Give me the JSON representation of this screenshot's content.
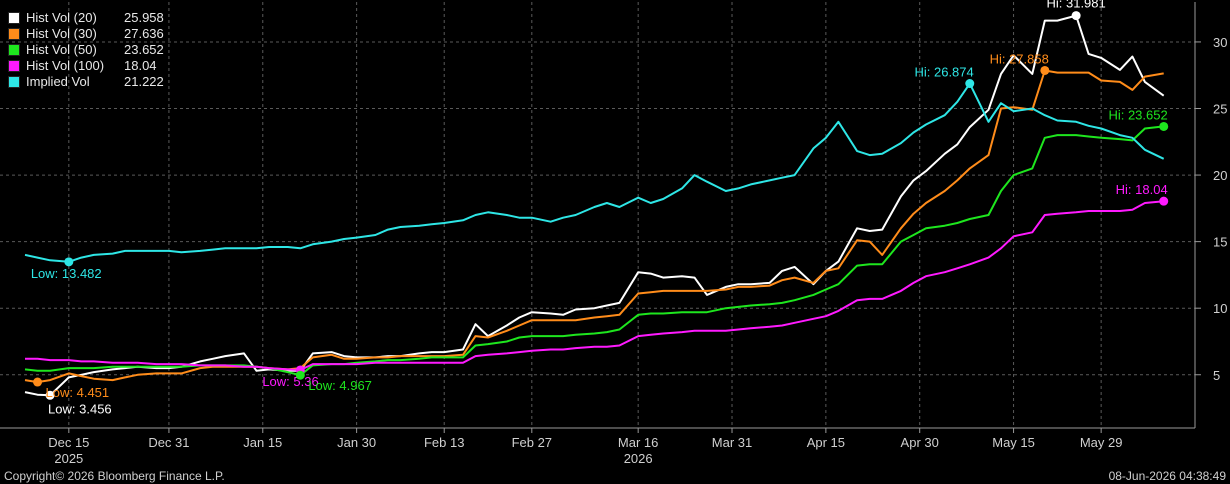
{
  "chart_data": {
    "type": "line",
    "x_dates": [
      "2025-12-08",
      "2025-12-10",
      "2025-12-12",
      "2025-12-15",
      "2025-12-17",
      "2025-12-19",
      "2025-12-22",
      "2025-12-24",
      "2025-12-26",
      "2025-12-29",
      "2025-12-31",
      "2026-01-02",
      "2026-01-05",
      "2026-01-07",
      "2026-01-09",
      "2026-01-12",
      "2026-01-14",
      "2026-01-16",
      "2026-01-19",
      "2026-01-21",
      "2026-01-23",
      "2026-01-26",
      "2026-01-28",
      "2026-01-30",
      "2026-02-02",
      "2026-02-04",
      "2026-02-06",
      "2026-02-09",
      "2026-02-11",
      "2026-02-13",
      "2026-02-16",
      "2026-02-18",
      "2026-02-20",
      "2026-02-23",
      "2026-02-25",
      "2026-02-27",
      "2026-03-02",
      "2026-03-04",
      "2026-03-06",
      "2026-03-09",
      "2026-03-11",
      "2026-03-13",
      "2026-03-16",
      "2026-03-18",
      "2026-03-20",
      "2026-03-23",
      "2026-03-25",
      "2026-03-27",
      "2026-03-30",
      "2026-04-01",
      "2026-04-03",
      "2026-04-06",
      "2026-04-08",
      "2026-04-10",
      "2026-04-13",
      "2026-04-15",
      "2026-04-17",
      "2026-04-20",
      "2026-04-22",
      "2026-04-24",
      "2026-04-27",
      "2026-04-29",
      "2026-05-01",
      "2026-05-04",
      "2026-05-06",
      "2026-05-08",
      "2026-05-11",
      "2026-05-13",
      "2026-05-15",
      "2026-05-18",
      "2026-05-20",
      "2026-05-22",
      "2026-05-25",
      "2026-05-27",
      "2026-05-29",
      "2026-06-01",
      "2026-06-03",
      "2026-06-05",
      "2026-06-08"
    ],
    "series": [
      {
        "name": "Hist Vol (20)",
        "color": "#ffffff",
        "last": "25.958",
        "values": [
          3.7,
          3.5,
          3.456,
          4.8,
          5.0,
          5.2,
          5.4,
          5.5,
          5.6,
          5.5,
          5.5,
          5.6,
          6.0,
          6.2,
          6.4,
          6.6,
          5.3,
          5.4,
          5.3,
          5.3,
          6.6,
          6.7,
          6.4,
          6.3,
          6.3,
          6.4,
          6.4,
          6.6,
          6.7,
          6.7,
          6.9,
          8.8,
          7.9,
          8.7,
          9.3,
          9.7,
          9.6,
          9.5,
          9.9,
          10.0,
          10.2,
          10.4,
          12.7,
          12.6,
          12.3,
          12.4,
          12.3,
          11.0,
          11.6,
          11.8,
          11.8,
          11.9,
          12.8,
          13.1,
          11.8,
          12.8,
          13.5,
          16.0,
          15.8,
          15.9,
          18.4,
          19.6,
          20.3,
          21.6,
          22.3,
          23.6,
          24.9,
          27.6,
          29.0,
          27.6,
          31.6,
          31.6,
          31.981,
          29.1,
          28.8,
          27.9,
          28.9,
          27.0,
          25.958
        ]
      },
      {
        "name": "Hist Vol (30)",
        "color": "#ff8c1a",
        "last": "27.636",
        "values": [
          4.6,
          4.451,
          4.6,
          5.1,
          4.9,
          4.7,
          4.6,
          4.8,
          5.0,
          5.1,
          5.1,
          5.1,
          5.5,
          5.6,
          5.6,
          5.6,
          5.6,
          5.5,
          5.4,
          5.5,
          6.3,
          6.5,
          6.2,
          6.2,
          6.3,
          6.3,
          6.4,
          6.4,
          6.4,
          6.4,
          6.5,
          7.9,
          7.8,
          8.3,
          8.7,
          9.1,
          9.1,
          9.1,
          9.1,
          9.3,
          9.4,
          9.5,
          11.1,
          11.2,
          11.3,
          11.3,
          11.3,
          11.3,
          11.4,
          11.6,
          11.6,
          11.7,
          12.1,
          12.3,
          11.9,
          12.8,
          13.0,
          15.1,
          15.0,
          14.0,
          16.0,
          17.1,
          17.9,
          18.8,
          19.6,
          20.5,
          21.5,
          25.0,
          25.1,
          24.9,
          27.858,
          27.7,
          27.7,
          27.7,
          27.1,
          27.0,
          26.4,
          27.4,
          27.636
        ]
      },
      {
        "name": "Hist Vol (50)",
        "color": "#1ee61e",
        "last": "23.652",
        "values": [
          5.4,
          5.3,
          5.3,
          5.5,
          5.5,
          5.5,
          5.6,
          5.6,
          5.6,
          5.6,
          5.6,
          5.6,
          5.7,
          5.7,
          5.7,
          5.7,
          5.6,
          5.5,
          5.2,
          4.967,
          5.7,
          5.8,
          5.8,
          5.9,
          6.0,
          6.1,
          6.1,
          6.2,
          6.3,
          6.3,
          6.3,
          7.2,
          7.3,
          7.5,
          7.8,
          7.9,
          7.9,
          7.9,
          8.0,
          8.1,
          8.2,
          8.4,
          9.5,
          9.6,
          9.6,
          9.7,
          9.7,
          9.7,
          10.0,
          10.1,
          10.2,
          10.3,
          10.4,
          10.6,
          11.0,
          11.4,
          11.8,
          13.2,
          13.3,
          13.3,
          15.0,
          15.5,
          16.0,
          16.2,
          16.4,
          16.7,
          17.0,
          18.8,
          20.0,
          20.5,
          22.8,
          23.0,
          23.0,
          22.9,
          22.8,
          22.7,
          22.6,
          23.5,
          23.652
        ]
      },
      {
        "name": "Hist Vol (100)",
        "color": "#ff1aff",
        "last": "18.04",
        "values": [
          6.2,
          6.2,
          6.1,
          6.1,
          6.0,
          6.0,
          5.9,
          5.9,
          5.9,
          5.8,
          5.8,
          5.8,
          5.7,
          5.7,
          5.7,
          5.6,
          5.6,
          5.5,
          5.4,
          5.36,
          5.8,
          5.8,
          5.8,
          5.8,
          5.9,
          5.9,
          5.9,
          5.9,
          5.9,
          5.9,
          5.9,
          6.4,
          6.5,
          6.6,
          6.7,
          6.8,
          6.9,
          6.9,
          7.0,
          7.1,
          7.1,
          7.2,
          7.9,
          8.0,
          8.1,
          8.2,
          8.3,
          8.3,
          8.3,
          8.4,
          8.5,
          8.6,
          8.7,
          8.9,
          9.2,
          9.4,
          9.8,
          10.6,
          10.7,
          10.7,
          11.3,
          11.9,
          12.4,
          12.7,
          13.0,
          13.3,
          13.8,
          14.5,
          15.4,
          15.7,
          17.0,
          17.1,
          17.2,
          17.3,
          17.3,
          17.3,
          17.4,
          17.9,
          18.04
        ]
      },
      {
        "name": "Implied Vol",
        "color": "#2ee6e6",
        "last": "21.222",
        "values": [
          14.0,
          13.8,
          13.6,
          13.482,
          13.8,
          14.0,
          14.1,
          14.3,
          14.3,
          14.3,
          14.3,
          14.2,
          14.3,
          14.4,
          14.5,
          14.5,
          14.5,
          14.6,
          14.6,
          14.5,
          14.8,
          15.0,
          15.2,
          15.3,
          15.5,
          15.9,
          16.1,
          16.2,
          16.3,
          16.4,
          16.6,
          17.0,
          17.2,
          17.0,
          16.8,
          16.8,
          16.5,
          16.8,
          17.0,
          17.6,
          17.9,
          17.6,
          18.3,
          17.9,
          18.2,
          19.0,
          20.0,
          19.5,
          18.8,
          19.0,
          19.3,
          19.6,
          19.8,
          20.0,
          22.0,
          22.8,
          24.0,
          21.8,
          21.5,
          21.6,
          22.4,
          23.2,
          23.8,
          24.5,
          25.5,
          26.874,
          24.0,
          25.4,
          24.8,
          25.0,
          24.5,
          24.1,
          24.0,
          23.7,
          23.5,
          23.0,
          22.8,
          21.9,
          21.222
        ]
      }
    ],
    "annotations": [
      {
        "text": "Low: 13.482",
        "series": 4,
        "x_date": "2025-12-15",
        "y": 13.482,
        "color": "#2ee6e6",
        "pos": "below-left"
      },
      {
        "text": "Low: 3.456",
        "series": 0,
        "x_date": "2025-12-12",
        "y": 3.456,
        "color": "#ffffff",
        "pos": "below"
      },
      {
        "text": "Low: 4.451",
        "series": 1,
        "x_date": "2025-12-10",
        "y": 4.451,
        "color": "#ff8c1a",
        "pos": "below-right"
      },
      {
        "text": "Low: 5.36",
        "series": 3,
        "x_date": "2026-01-21",
        "y": 5.36,
        "color": "#ff1aff",
        "pos": "below-left"
      },
      {
        "text": "Low: 4.967",
        "series": 2,
        "x_date": "2026-01-21",
        "y": 4.967,
        "color": "#1ee61e",
        "pos": "below-right"
      },
      {
        "text": "Hi: 26.874",
        "series": 4,
        "x_date": "2026-05-08",
        "y": 26.874,
        "color": "#2ee6e6",
        "pos": "above-left"
      },
      {
        "text": "Hi: 27.858",
        "series": 1,
        "x_date": "2026-05-20",
        "y": 27.858,
        "color": "#ff8c1a",
        "pos": "above-left"
      },
      {
        "text": "Hi: 31.981",
        "series": 0,
        "x_date": "2026-05-25",
        "y": 31.981,
        "color": "#ffffff",
        "pos": "above"
      },
      {
        "text": "Hi: 23.652",
        "series": 2,
        "x_date": "2026-06-08",
        "y": 23.652,
        "color": "#1ee61e",
        "pos": "above-left"
      },
      {
        "text": "Hi: 18.04",
        "series": 3,
        "x_date": "2026-06-08",
        "y": 18.04,
        "color": "#ff1aff",
        "pos": "above-left"
      }
    ],
    "y_axis": {
      "min": 1,
      "max": 33,
      "ticks": [
        "5",
        "10",
        "15",
        "20",
        "25",
        "30"
      ],
      "side": "right"
    },
    "x_axis": {
      "tick_labels": [
        {
          "label": "Dec 15",
          "date": "2025-12-15"
        },
        {
          "label": "Dec 31",
          "date": "2025-12-31"
        },
        {
          "label": "Jan 15",
          "date": "2026-01-15"
        },
        {
          "label": "Jan 30",
          "date": "2026-01-30"
        },
        {
          "label": "Feb 13",
          "date": "2026-02-13"
        },
        {
          "label": "Feb 27",
          "date": "2026-02-27"
        },
        {
          "label": "Mar 16",
          "date": "2026-03-16"
        },
        {
          "label": "Mar 31",
          "date": "2026-03-31"
        },
        {
          "label": "Apr 15",
          "date": "2026-04-15"
        },
        {
          "label": "Apr 30",
          "date": "2026-04-30"
        },
        {
          "label": "May 15",
          "date": "2026-05-15"
        },
        {
          "label": "May 29",
          "date": "2026-05-29"
        }
      ],
      "year_labels": [
        {
          "label": "2025",
          "date": "2025-12-15"
        },
        {
          "label": "2026",
          "date": "2026-03-16"
        }
      ]
    },
    "grid": true,
    "legend_position": "top-left"
  },
  "footer": {
    "copyright": "Copyright© 2026 Bloomberg Finance L.P.",
    "timestamp": "08-Jun-2026 04:38:49"
  }
}
